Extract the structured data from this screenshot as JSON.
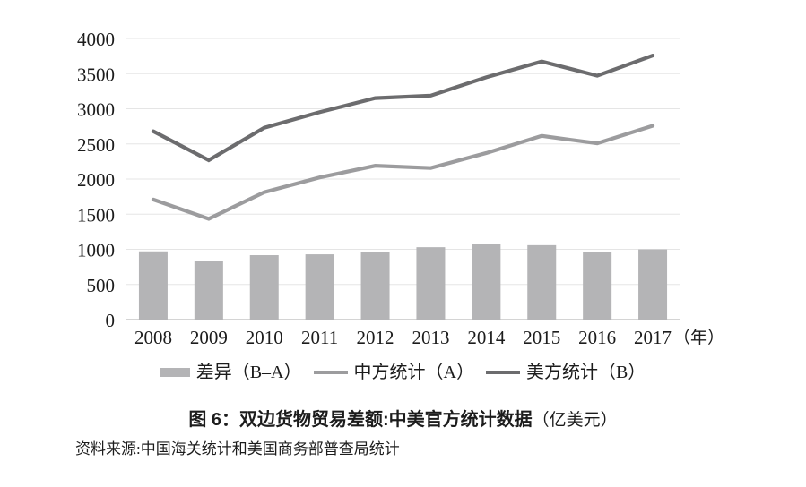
{
  "chart_data": {
    "type": "bar+line combo",
    "title": "图 6：双边货物贸易差额:中美官方统计数据（亿美元）",
    "xlabel": "",
    "ylabel": "",
    "categories": [
      "2008",
      "2009",
      "2010",
      "2011",
      "2012",
      "2013",
      "2014",
      "2015",
      "2016",
      "2017"
    ],
    "series": [
      {
        "key": "difference",
        "name": "差异（B–A）",
        "type": "bar",
        "color": "#b4b4b6",
        "values": [
          971,
          834,
          917,
          929,
          962,
          1030,
          1078,
          1059,
          962,
          999
        ]
      },
      {
        "key": "china-stats",
        "name": "中方统计（A）",
        "type": "line",
        "color": "#9c9c9e",
        "values": [
          1709,
          1434,
          1813,
          2023,
          2189,
          2157,
          2370,
          2614,
          2508,
          2758
        ]
      },
      {
        "key": "us-stats",
        "name": "美方统计（B）",
        "type": "line",
        "color": "#6c6c6e",
        "values": [
          2680,
          2268,
          2730,
          2952,
          3151,
          3187,
          3448,
          3673,
          3470,
          3757
        ]
      }
    ],
    "y_axis": {
      "min": 0,
      "max": 4000,
      "step": 500,
      "tick_labels": [
        "0",
        "500",
        "1000",
        "1500",
        "2000",
        "2500",
        "3000",
        "3500",
        "4000"
      ]
    },
    "x_axis": {
      "unit_suffix": "（年）"
    },
    "grid": true,
    "legend_position": "bottom",
    "colors": {
      "gridline": "#e5e5e5",
      "axis_line": "#c6c6c6",
      "text": "#1c1c1c"
    }
  },
  "caption": {
    "bold_text": "图 6：双边货物贸易差额:中美官方统计数据",
    "unit_suffix": "（亿美元）"
  },
  "source_note": "资料来源:中国海关统计和美国商务部普查局统计"
}
